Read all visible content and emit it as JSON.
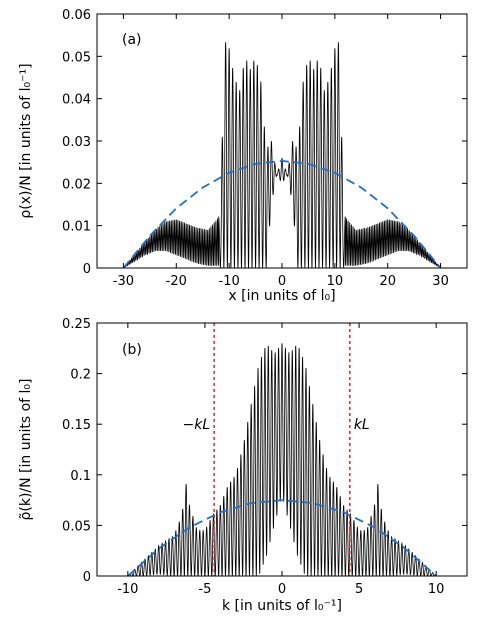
{
  "chart_data": [
    {
      "type": "line",
      "panel_label": "(a)",
      "ylabel": "ρ(x)/N [in units of l₀⁻¹]",
      "xlabel": "x [in units of l₀]",
      "xlim": [
        -35,
        35
      ],
      "ylim": [
        0,
        0.06
      ],
      "xticks": [
        -30,
        -20,
        -10,
        0,
        10,
        20,
        30
      ],
      "xtick_labels": [
        "-30",
        "-20",
        "-10",
        "0",
        "10",
        "20",
        "30"
      ],
      "yticks": [
        0,
        0.01,
        0.02,
        0.03,
        0.04,
        0.05,
        0.06
      ],
      "ytick_labels": [
        "0",
        "0.01",
        "0.02",
        "0.03",
        "0.04",
        "0.05",
        "0.06"
      ],
      "grid": false,
      "series": [
        {
          "style": "solid",
          "color": "#000000",
          "x": [
            -30,
            -28,
            -26,
            -24,
            -22,
            -20,
            -18,
            -16,
            -14,
            -12,
            -11.5,
            -11,
            -10.5,
            -10,
            -9,
            -8,
            -7,
            -6,
            -5,
            -4,
            -3,
            -2,
            -1,
            0,
            1,
            2,
            3,
            4,
            5,
            6,
            7,
            8,
            9,
            10,
            10.5,
            11,
            11.5,
            12,
            14,
            16,
            18,
            20,
            22,
            24,
            26,
            28,
            30
          ],
          "envelope_max": [
            0.0,
            0.003,
            0.006,
            0.009,
            0.011,
            0.0115,
            0.0105,
            0.0095,
            0.009,
            0.012,
            0.018,
            0.052,
            0.054,
            0.052,
            0.045,
            0.042,
            0.05,
            0.047,
            0.05,
            0.044,
            0.028,
            0.03,
            0.022,
            0.026,
            0.022,
            0.03,
            0.028,
            0.044,
            0.05,
            0.047,
            0.05,
            0.042,
            0.045,
            0.052,
            0.054,
            0.052,
            0.018,
            0.012,
            0.009,
            0.0095,
            0.0105,
            0.0115,
            0.011,
            0.009,
            0.006,
            0.003,
            0.0
          ],
          "envelope_min": [
            0.0,
            0.0015,
            0.003,
            0.004,
            0.004,
            0.003,
            0.002,
            0.001,
            0.0005,
            0.0005,
            0.0,
            0.0,
            0.0,
            0.0,
            0.0,
            0.0,
            0.0,
            0.0,
            0.0,
            0.0,
            0.0,
            0.015,
            0.022,
            0.02,
            0.022,
            0.015,
            0.0,
            0.0,
            0.0,
            0.0,
            0.0,
            0.0,
            0.0,
            0.0,
            0.0,
            0.0,
            0.0,
            0.0005,
            0.0005,
            0.001,
            0.002,
            0.003,
            0.004,
            0.004,
            0.003,
            0.0015,
            0.0
          ]
        },
        {
          "style": "dashed",
          "color": "#1f6fd0",
          "x": [
            -30,
            -25,
            -20,
            -15,
            -10,
            -5,
            0,
            5,
            10,
            15,
            20,
            25,
            30
          ],
          "y": [
            0.0,
            0.0076,
            0.0141,
            0.019,
            0.0225,
            0.0246,
            0.0253,
            0.0246,
            0.0225,
            0.019,
            0.0141,
            0.0076,
            0.0
          ]
        }
      ]
    },
    {
      "type": "line",
      "panel_label": "(b)",
      "ylabel": "ρ̃(k)/N [in units of l₀]",
      "xlabel": "k [in units of l₀⁻¹]",
      "xlim": [
        -12,
        12
      ],
      "ylim": [
        0,
        0.25
      ],
      "xticks": [
        -10,
        -5,
        0,
        5,
        10
      ],
      "xtick_labels": [
        "-10",
        "-5",
        "0",
        "5",
        "10"
      ],
      "yticks": [
        0,
        0.05,
        0.1,
        0.15,
        0.2,
        0.25
      ],
      "ytick_labels": [
        "0",
        "0.05",
        "0.1",
        "0.15",
        "0.2",
        "0.25"
      ],
      "grid": false,
      "annotations": [
        {
          "text": "−kL",
          "x": -4.4
        },
        {
          "text": "kL",
          "x": 4.4
        }
      ],
      "vlines": [
        {
          "x": -4.4,
          "style": "dotted",
          "color": "#e8222b"
        },
        {
          "x": 4.4,
          "style": "dotted",
          "color": "#e8222b"
        }
      ],
      "series": [
        {
          "style": "solid",
          "color": "#000000",
          "x": [
            -10,
            -9,
            -8,
            -7,
            -6.5,
            -6.2,
            -6,
            -5.5,
            -5,
            -4.5,
            -4,
            -3.5,
            -3,
            -2.5,
            -2,
            -1.5,
            -1,
            -0.5,
            0,
            0.5,
            1,
            1.5,
            2,
            2.5,
            3,
            3.5,
            4,
            4.5,
            5,
            5.5,
            6,
            6.2,
            6.5,
            7,
            8,
            9,
            10
          ],
          "envelope_max": [
            0.0,
            0.015,
            0.03,
            0.04,
            0.06,
            0.093,
            0.07,
            0.045,
            0.045,
            0.06,
            0.07,
            0.09,
            0.1,
            0.13,
            0.17,
            0.21,
            0.23,
            0.22,
            0.23,
            0.22,
            0.23,
            0.21,
            0.17,
            0.13,
            0.1,
            0.09,
            0.07,
            0.06,
            0.045,
            0.045,
            0.07,
            0.093,
            0.06,
            0.04,
            0.03,
            0.015,
            0.0
          ],
          "envelope_min": [
            0.0,
            0.0,
            0.002,
            0.0,
            0.0,
            0.0,
            0.0,
            0.0,
            0.0,
            0.0,
            0.0,
            0.0,
            0.0,
            0.0,
            0.0,
            0.0,
            0.02,
            0.05,
            0.08,
            0.05,
            0.02,
            0.0,
            0.0,
            0.0,
            0.0,
            0.0,
            0.0,
            0.0,
            0.0,
            0.0,
            0.0,
            0.0,
            0.0,
            0.0,
            0.002,
            0.0,
            0.0
          ]
        },
        {
          "style": "dashed",
          "color": "#1f6fd0",
          "x": [
            -10,
            -8,
            -6,
            -4,
            -2,
            0,
            2,
            4,
            6,
            8,
            10
          ],
          "y": [
            0.0,
            0.027,
            0.048,
            0.063,
            0.072,
            0.075,
            0.072,
            0.063,
            0.048,
            0.027,
            0.0
          ]
        }
      ]
    }
  ]
}
